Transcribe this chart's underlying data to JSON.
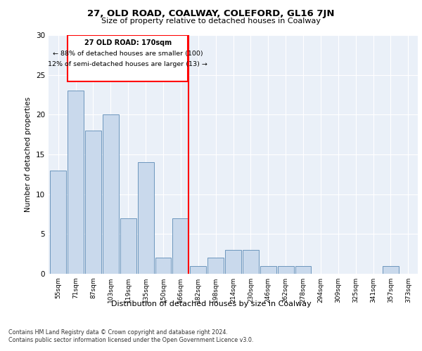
{
  "title1": "27, OLD ROAD, COALWAY, COLEFORD, GL16 7JN",
  "title2": "Size of property relative to detached houses in Coalway",
  "xlabel": "Distribution of detached houses by size in Coalway",
  "ylabel": "Number of detached properties",
  "categories": [
    "55sqm",
    "71sqm",
    "87sqm",
    "103sqm",
    "119sqm",
    "135sqm",
    "150sqm",
    "166sqm",
    "182sqm",
    "198sqm",
    "214sqm",
    "230sqm",
    "246sqm",
    "262sqm",
    "278sqm",
    "294sqm",
    "309sqm",
    "325sqm",
    "341sqm",
    "357sqm",
    "373sqm"
  ],
  "values": [
    13,
    23,
    18,
    20,
    7,
    14,
    2,
    7,
    1,
    2,
    3,
    3,
    1,
    1,
    1,
    0,
    0,
    0,
    0,
    1,
    0
  ],
  "bar_color": "#c9d9ec",
  "bar_edge_color": "#5b8ab5",
  "red_line_index": 7,
  "ylim": [
    0,
    30
  ],
  "yticks": [
    0,
    5,
    10,
    15,
    20,
    25,
    30
  ],
  "annotation_title": "27 OLD ROAD: 170sqm",
  "annotation_line1": "← 88% of detached houses are smaller (100)",
  "annotation_line2": "12% of semi-detached houses are larger (13) →",
  "footer1": "Contains HM Land Registry data © Crown copyright and database right 2024.",
  "footer2": "Contains public sector information licensed under the Open Government Licence v3.0.",
  "plot_bg_color": "#eaf0f8"
}
